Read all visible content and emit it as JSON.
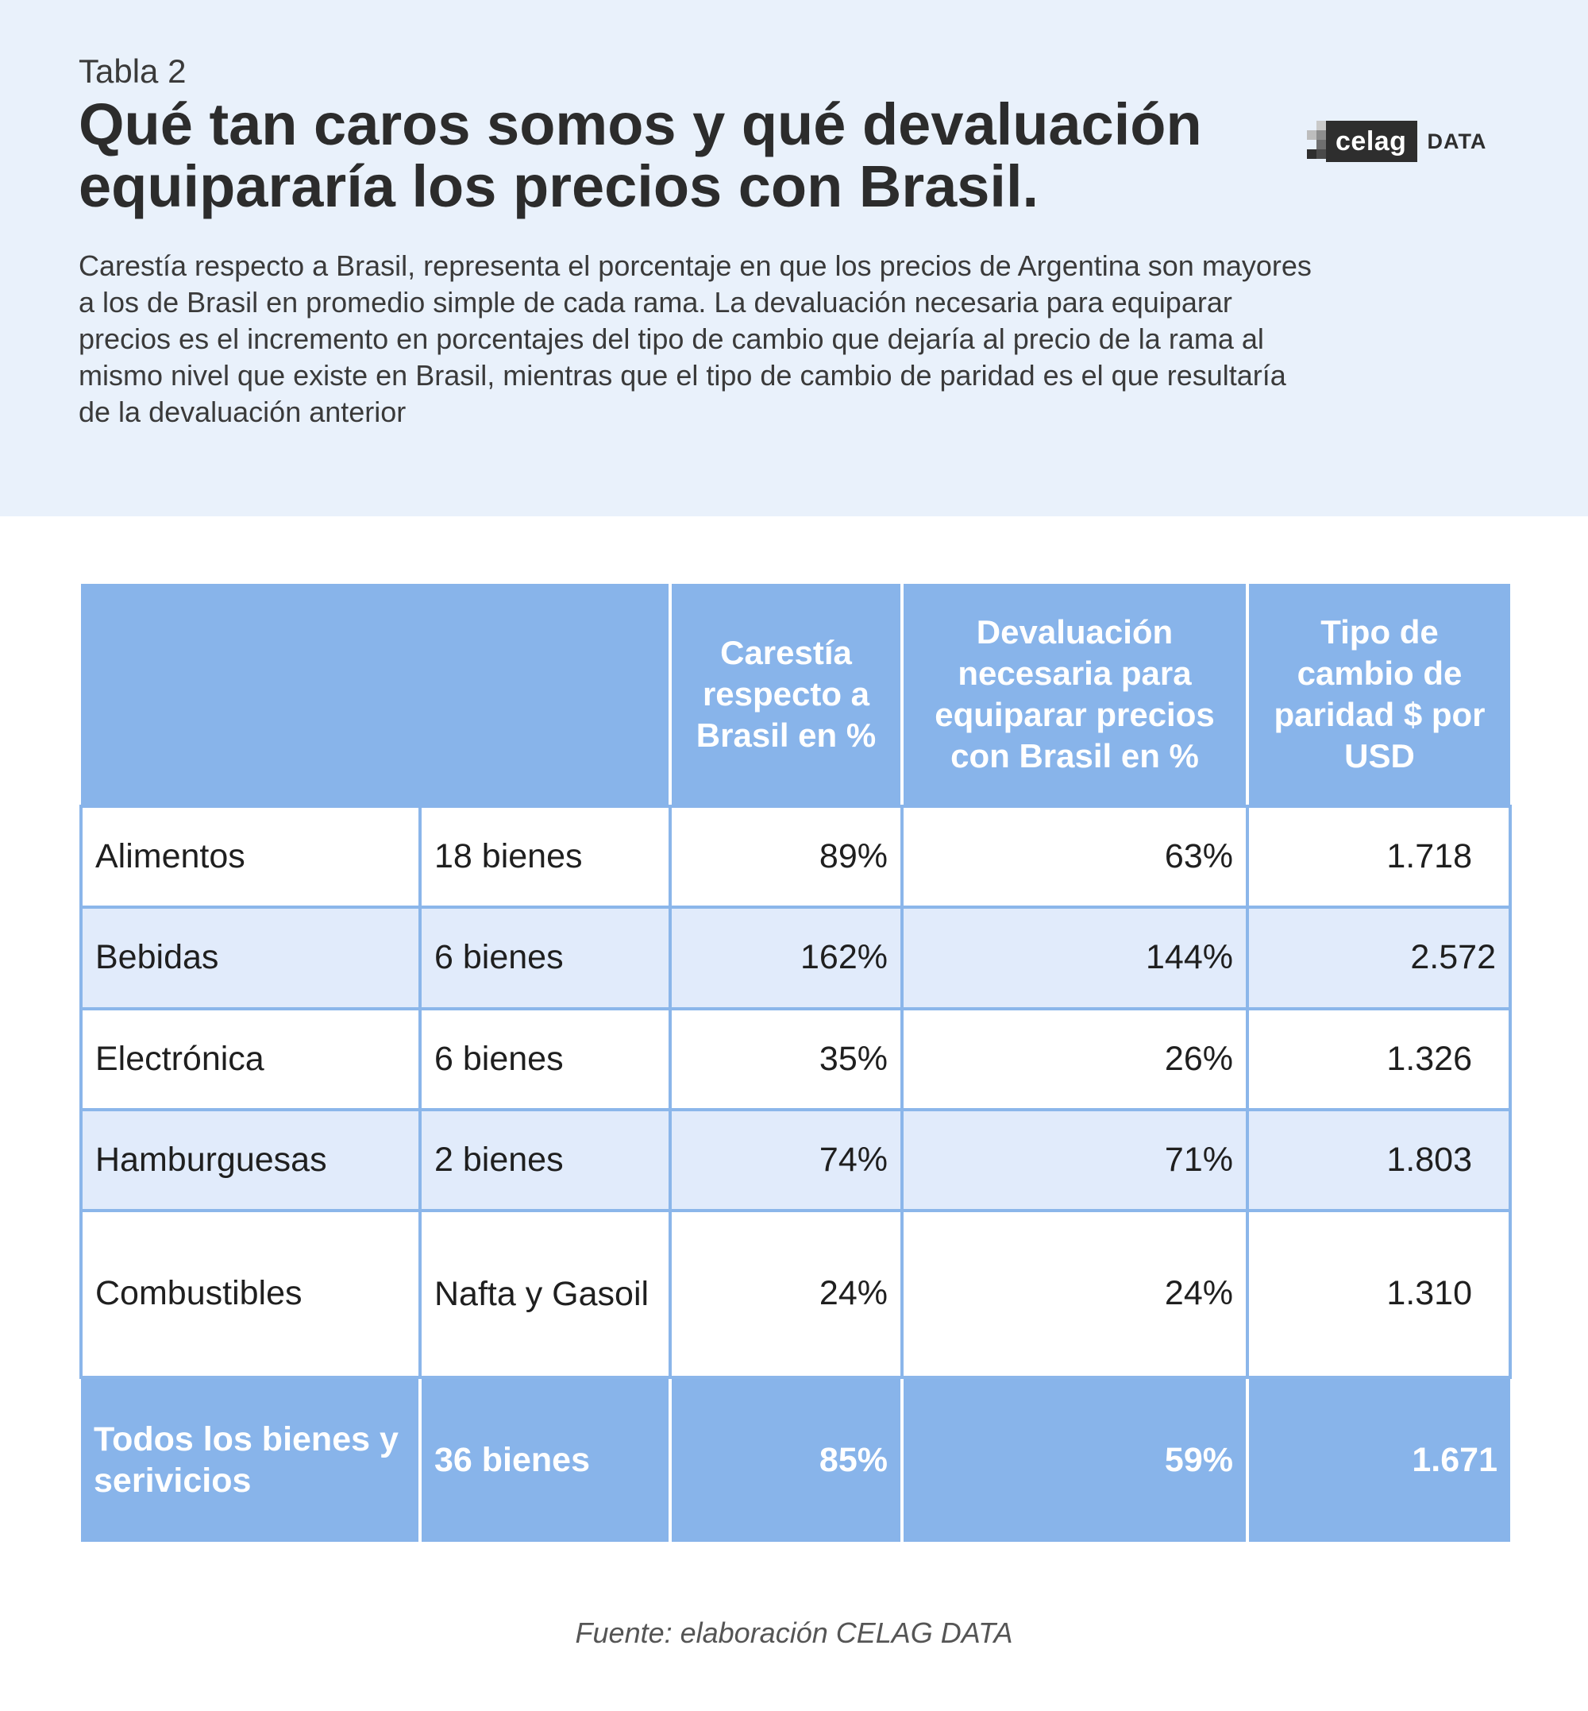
{
  "header": {
    "kicker": "Tabla 2",
    "title": "Qué tan caros somos y qué devaluación equipararía los precios con Brasil.",
    "subtitle": "Carestía respecto a Brasil, representa el porcentaje en que los precios de Argentina son  mayores a los de Brasil en promedio simple de cada rama. La devaluación necesaria para equiparar precios es el incremento en porcentajes del tipo de cambio que dejaría al precio de la rama al mismo nivel que existe en Brasil, mientras que el tipo de cambio de paridad es el que resultaría de la devaluación anterior"
  },
  "logo": {
    "brand": "celag",
    "suffix": "DATA"
  },
  "table": {
    "headers": [
      "",
      "",
      "Carestía respecto a Brasil en %",
      "Devaluación necesaria para equiparar precios con Brasil en %",
      "Tipo de cambio de paridad $ por USD"
    ],
    "rows": [
      [
        "Alimentos",
        "18 bienes",
        "89%",
        "63%",
        "1.718"
      ],
      [
        "Bebidas",
        "6 bienes",
        "162%",
        "144%",
        "2.572"
      ],
      [
        "Electrónica",
        "6 bienes",
        "35%",
        "26%",
        "1.326"
      ],
      [
        "Hamburguesas",
        "2 bienes",
        "74%",
        "71%",
        "1.803"
      ],
      [
        "Combustibles",
        "Nafta y Gasoil",
        "24%",
        "24%",
        "1.310"
      ]
    ],
    "total": [
      "Todos los bienes y serivicios",
      "36 bienes",
      "85%",
      "59%",
      "1.671"
    ]
  },
  "footer": {
    "source": "Fuente: elaboración CELAG DATA"
  },
  "colors": {
    "header_bg": "#e9f1fb",
    "table_header_bg": "#88b4ea",
    "alt_row_bg": "#e1ebfb",
    "logo_bg": "#2e2e2e"
  }
}
